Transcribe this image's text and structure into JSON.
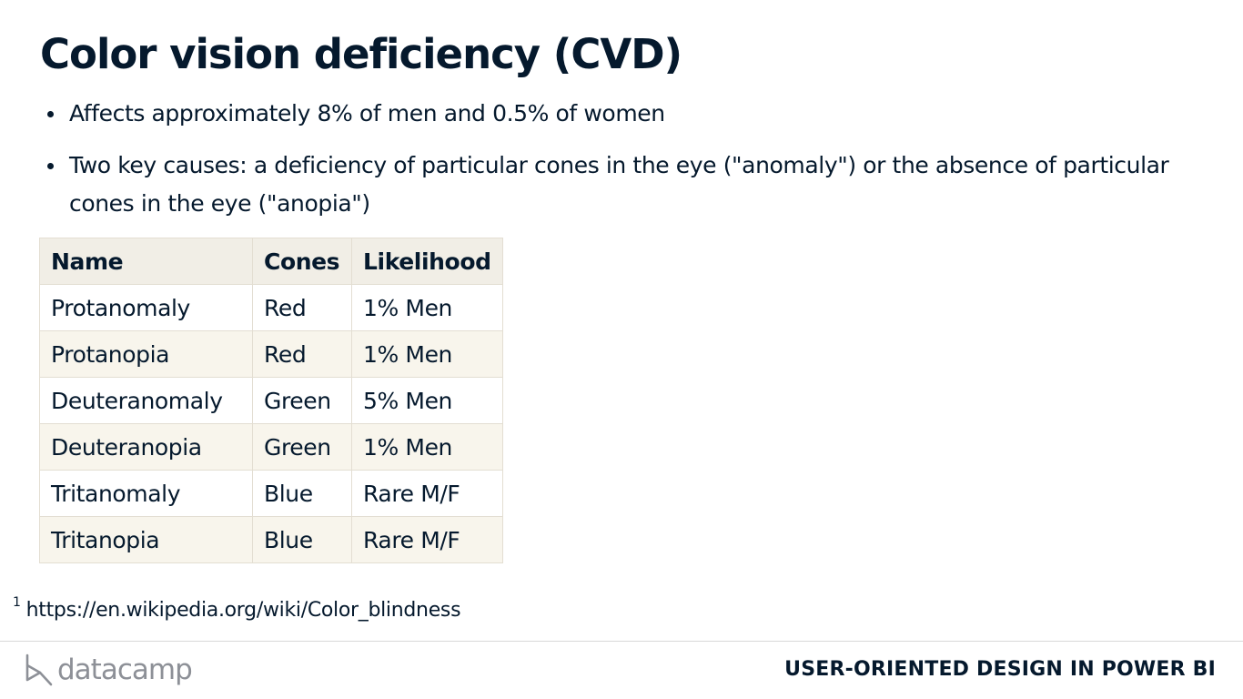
{
  "title": "Color vision deficiency (CVD)",
  "bullets": [
    "Affects approximately 8% of men and 0.5% of women",
    "Two key causes: a deficiency of particular cones in the eye (\"anomaly\") or the absence of particular cones in the eye (\"anopia\")"
  ],
  "table": {
    "headers": [
      "Name",
      "Cones",
      "Likelihood"
    ],
    "rows": [
      [
        "Protanomaly",
        "Red",
        "1% Men"
      ],
      [
        "Protanopia",
        "Red",
        "1% Men"
      ],
      [
        "Deuteranomaly",
        "Green",
        "5% Men"
      ],
      [
        "Deuteranopia",
        "Green",
        "1% Men"
      ],
      [
        "Tritanomaly",
        "Blue",
        "Rare M/F"
      ],
      [
        "Tritanopia",
        "Blue",
        "Rare M/F"
      ]
    ]
  },
  "footnote": {
    "marker": "1",
    "text": "https://en.wikipedia.org/wiki/Color_blindness"
  },
  "footer": {
    "logo_text": "datacamp",
    "logo_icon": "datacamp-logo-icon",
    "course_title": "USER-ORIENTED DESIGN IN POWER BI"
  },
  "colors": {
    "text": "#05192d",
    "header_bg": "#f1eee6",
    "row_alt_bg": "#f8f5ec",
    "logo_gray": "#8d9097"
  }
}
